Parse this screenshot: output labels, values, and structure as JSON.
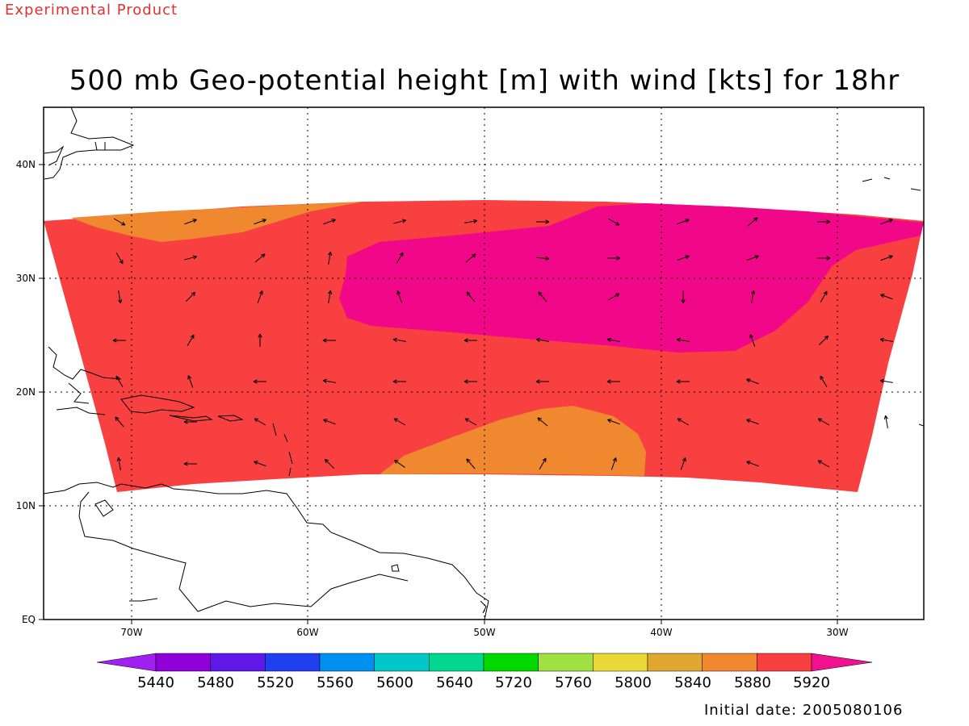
{
  "header": {
    "banner": "Experimental Product"
  },
  "title": "500 mb Geo-potential height [m] with wind [kts] for 18hr",
  "axes": {
    "lon_labels": [
      "70W",
      "60W",
      "50W",
      "40W",
      "30W"
    ],
    "lat_labels": [
      "EQ",
      "10N",
      "20N",
      "30N",
      "40N"
    ]
  },
  "colorbar": {
    "labels": [
      "5440",
      "5480",
      "5520",
      "5560",
      "5600",
      "5640",
      "5720",
      "5760",
      "5800",
      "5840",
      "5880",
      "5920"
    ],
    "colors": [
      "#9000d8",
      "#6018e8",
      "#2040f0",
      "#0090f0",
      "#00c8c8",
      "#00d890",
      "#00d800",
      "#a0e040",
      "#e8d838",
      "#e0a830",
      "#f08830",
      "#f84040",
      "#f00888"
    ],
    "low_arrow_color": "#a020f0",
    "high_arrow_color": "#f01090"
  },
  "field_colors": {
    "c5840": "#f08830",
    "c5880": "#f84040",
    "c5920": "#f00888"
  },
  "footer": {
    "initial_date": "Initial date: 2005080106"
  }
}
